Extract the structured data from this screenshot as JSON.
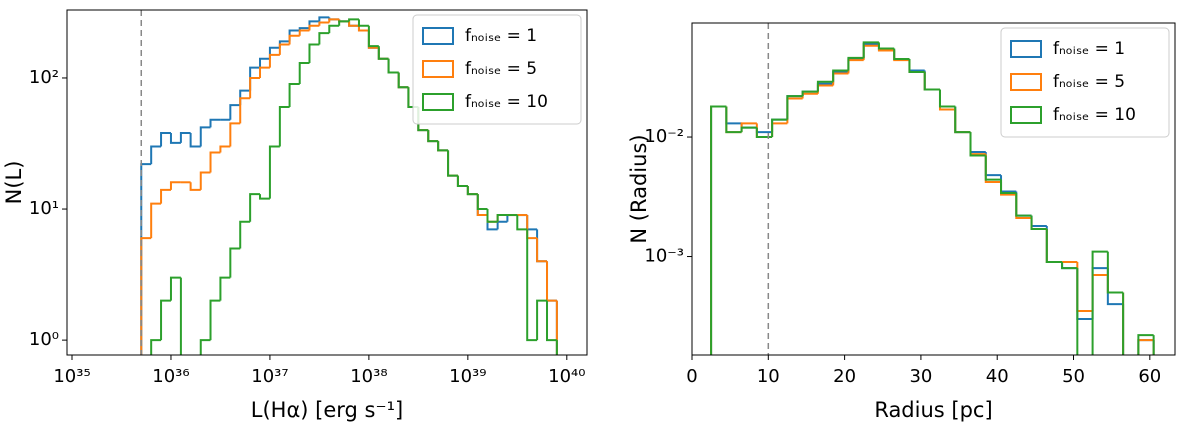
{
  "chart_data": [
    {
      "type": "histogram",
      "xlabel": "L(Hα) [erg s⁻¹]",
      "ylabel": "N(L)",
      "xlog": true,
      "ylog": true,
      "legend": "upper right",
      "xlim": [
        8.9e+34,
        1.6e+40
      ],
      "ylim": [
        0.77,
        330
      ],
      "xticks": [
        {
          "value": 1e+35,
          "label": "10³⁵"
        },
        {
          "value": 1e+36,
          "label": "10³⁶"
        },
        {
          "value": 1e+37,
          "label": "10³⁷"
        },
        {
          "value": 1e+38,
          "label": "10³⁸"
        },
        {
          "value": 1e+39,
          "label": "10³⁹"
        },
        {
          "value": 1e+40,
          "label": "10⁴⁰"
        }
      ],
      "yticks": [
        {
          "value": 1,
          "label": "10⁰"
        },
        {
          "value": 10,
          "label": "10¹"
        },
        {
          "value": 100,
          "label": "10²"
        }
      ],
      "vline": 5.01e+35,
      "bins": [
        5.01e+35,
        6.31e+35,
        7.94e+35,
        1e+36,
        1.26e+36,
        1.58e+36,
        2e+36,
        2.51e+36,
        3.16e+36,
        3.98e+36,
        5.01e+36,
        6.31e+36,
        7.94e+36,
        1e+37,
        1.26e+37,
        1.58e+37,
        2e+37,
        2.51e+37,
        3.16e+37,
        3.98e+37,
        5.01e+37,
        6.31e+37,
        7.94e+37,
        1e+38,
        1.26e+38,
        1.58e+38,
        2e+38,
        2.51e+38,
        3.16e+38,
        3.98e+38,
        5.01e+38,
        6.31e+38,
        7.94e+38,
        1e+39,
        1.26e+39,
        1.58e+39,
        2e+39,
        2.51e+39,
        3.16e+39,
        3.98e+39,
        5.01e+39,
        6.31e+39,
        7.94e+39
      ],
      "series": [
        {
          "name": "fₙₒᵢₛₑ = 1",
          "color": "#1f77b4",
          "values": [
            22,
            30,
            38,
            32,
            38,
            30,
            42,
            48,
            48,
            62,
            80,
            120,
            140,
            170,
            190,
            230,
            240,
            270,
            290,
            280,
            270,
            250,
            230,
            170,
            140,
            110,
            85,
            60,
            40,
            33,
            28,
            18,
            15,
            13,
            9,
            7,
            8,
            9,
            9,
            7,
            4,
            2
          ]
        },
        {
          "name": "fₙₒᵢₛₑ = 5",
          "color": "#ff7f0e",
          "values": [
            6,
            11,
            14,
            16,
            16,
            14,
            19,
            27,
            30,
            45,
            70,
            100,
            120,
            150,
            180,
            210,
            230,
            250,
            265,
            280,
            270,
            250,
            230,
            170,
            140,
            110,
            85,
            60,
            40,
            33,
            28,
            18,
            15,
            13,
            9,
            8,
            9,
            9,
            9,
            6,
            4,
            2
          ]
        },
        {
          "name": "fₙₒᵢₛₑ = 10",
          "color": "#2ca02c",
          "values": [
            0,
            1,
            2,
            3,
            0,
            0,
            1,
            2,
            3,
            5,
            8,
            13,
            12,
            30,
            60,
            90,
            130,
            180,
            220,
            250,
            270,
            280,
            250,
            175,
            140,
            110,
            85,
            60,
            40,
            33,
            28,
            18,
            15,
            13,
            10,
            8,
            9,
            9,
            7,
            1,
            2,
            1
          ]
        }
      ]
    },
    {
      "type": "histogram",
      "xlabel": "Radius [pc]",
      "ylabel": "N (Radius)",
      "xlog": false,
      "ylog": true,
      "legend": "upper right",
      "xlim": [
        0,
        63.3
      ],
      "ylim": [
        0.00015,
        0.09
      ],
      "xticks": [
        0,
        10,
        20,
        30,
        40,
        50,
        60
      ],
      "yticks": [
        {
          "value": 0.001,
          "label": "10⁻³"
        },
        {
          "value": 0.01,
          "label": "10⁻²"
        }
      ],
      "vline": 10,
      "bins": [
        2.5,
        4.5,
        6.5,
        8.5,
        10.5,
        12.5,
        14.5,
        16.5,
        18.5,
        20.5,
        22.5,
        24.5,
        26.5,
        28.5,
        30.5,
        32.5,
        34.5,
        36.5,
        38.5,
        40.5,
        42.5,
        44.5,
        46.5,
        48.5,
        50.5,
        52.5,
        54.5,
        56.5,
        58.5,
        60.5
      ],
      "series": [
        {
          "name": "fₙₒᵢₛₑ = 1",
          "color": "#1f77b4",
          "values": [
            0.018,
            0.013,
            0.012,
            0.011,
            0.014,
            0.022,
            0.024,
            0.028,
            0.035,
            0.045,
            0.06,
            0.054,
            0.045,
            0.036,
            0.025,
            0.018,
            0.011,
            0.0075,
            0.0048,
            0.0035,
            0.0022,
            0.0018,
            0.0009,
            0.0008,
            0.0003,
            0.0008,
            0.0004,
            0,
            0.0002
          ]
        },
        {
          "name": "fₙₒᵢₛₑ = 5",
          "color": "#ff7f0e",
          "values": [
            0.018,
            0.011,
            0.013,
            0.01,
            0.013,
            0.021,
            0.023,
            0.027,
            0.034,
            0.044,
            0.058,
            0.053,
            0.044,
            0.035,
            0.025,
            0.017,
            0.011,
            0.0072,
            0.0042,
            0.0033,
            0.0021,
            0.0017,
            0.0009,
            0.0009,
            0.00035,
            0.0007,
            0.0005,
            0,
            0.0002
          ]
        },
        {
          "name": "fₙₒᵢₛₑ = 10",
          "color": "#2ca02c",
          "values": [
            0.018,
            0.011,
            0.012,
            0.01,
            0.014,
            0.022,
            0.024,
            0.029,
            0.036,
            0.046,
            0.062,
            0.055,
            0.045,
            0.035,
            0.025,
            0.018,
            0.011,
            0.007,
            0.0044,
            0.0034,
            0.0022,
            0.0017,
            0.0009,
            0.0008,
            0.0,
            0.0011,
            0.0005,
            0,
            0.00022
          ]
        }
      ]
    }
  ]
}
